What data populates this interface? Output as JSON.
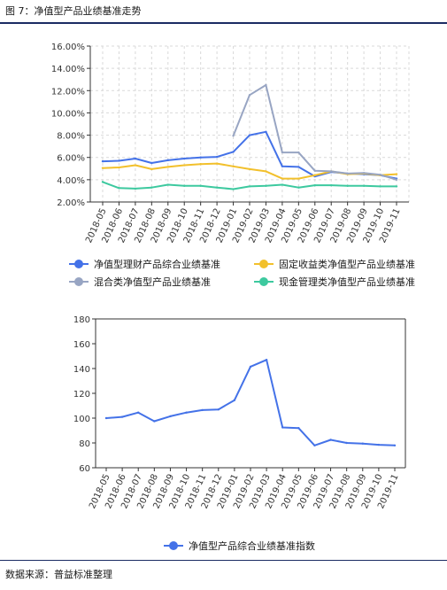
{
  "figure": {
    "title": "图 7：净值型产品业绩基准走势",
    "source": "数据来源：普益标准整理"
  },
  "chart_data": [
    {
      "type": "line",
      "categories": [
        "2018-05",
        "2018-06",
        "2018-07",
        "2018-08",
        "2018-09",
        "2018-10",
        "2018-11",
        "2018-12",
        "2019-01",
        "2019-02",
        "2019-03",
        "2019-04",
        "2019-05",
        "2019-06",
        "2019-07",
        "2019-08",
        "2019-09",
        "2019-10",
        "2019-11"
      ],
      "y_ticks": [
        "2.00%",
        "4.00%",
        "6.00%",
        "8.00%",
        "10.00%",
        "12.00%",
        "14.00%",
        "16.00%"
      ],
      "ylim": [
        2,
        16
      ],
      "grid": true,
      "legend_position": "bottom",
      "series": [
        {
          "name": "净值型理财产品综合业绩基准",
          "color": "#4472e8",
          "values": [
            5.65,
            5.7,
            5.9,
            5.5,
            5.75,
            5.9,
            6.0,
            6.05,
            6.5,
            8.0,
            8.3,
            5.2,
            5.15,
            4.3,
            4.7,
            4.55,
            4.5,
            4.4,
            4.1
          ]
        },
        {
          "name": "固定收益类净值型产品业绩基准",
          "color": "#f2c02c",
          "values": [
            5.05,
            5.1,
            5.3,
            4.95,
            5.15,
            5.3,
            5.4,
            5.45,
            5.2,
            4.95,
            4.75,
            4.1,
            4.1,
            4.4,
            4.75,
            4.5,
            4.55,
            4.4,
            4.5
          ]
        },
        {
          "name": "混合类净值型产品业绩基准",
          "color": "#98a5c3",
          "values": [
            null,
            null,
            null,
            null,
            null,
            null,
            null,
            null,
            7.95,
            11.6,
            12.5,
            6.45,
            6.45,
            4.8,
            4.75,
            4.55,
            4.6,
            4.45,
            4.0
          ]
        },
        {
          "name": "现金管理类净值型产品业绩基准",
          "color": "#3dc99f",
          "values": [
            3.8,
            3.25,
            3.2,
            3.3,
            3.55,
            3.45,
            3.45,
            3.3,
            3.15,
            3.4,
            3.45,
            3.55,
            3.3,
            3.5,
            3.5,
            3.45,
            3.45,
            3.4,
            3.4
          ]
        }
      ]
    },
    {
      "type": "line",
      "categories": [
        "2018-05",
        "2018-06",
        "2018-07",
        "2018-08",
        "2018-09",
        "2018-10",
        "2018-11",
        "2018-12",
        "2019-01",
        "2019-02",
        "2019-03",
        "2019-04",
        "2019-05",
        "2019-06",
        "2019-07",
        "2019-08",
        "2019-09",
        "2019-10",
        "2019-11"
      ],
      "y_ticks": [
        "60",
        "80",
        "100",
        "120",
        "140",
        "160",
        "180"
      ],
      "ylim": [
        60,
        180
      ],
      "grid": false,
      "legend_position": "bottom",
      "series": [
        {
          "name": "净值型产品综合业绩基准指数",
          "color": "#4472e8",
          "values": [
            100,
            101,
            104.5,
            97.5,
            101.5,
            104.5,
            106.5,
            107,
            114.5,
            141.5,
            147,
            92.5,
            92,
            78,
            82.5,
            80,
            79.5,
            78.5,
            78
          ]
        }
      ]
    }
  ]
}
